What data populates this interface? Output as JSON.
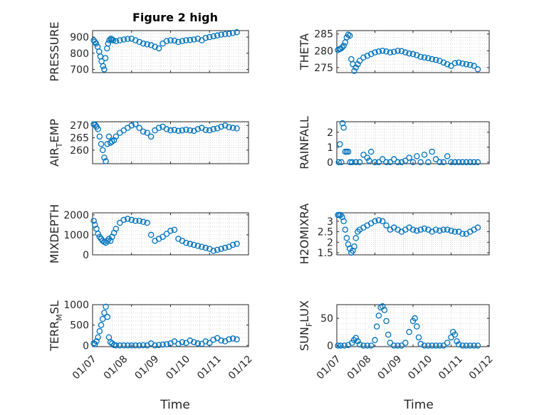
{
  "figure": {
    "title": "Figure 2 high",
    "xlabel": "Time"
  },
  "colors": {
    "marker": "#0072BD",
    "axis": "#262626",
    "grid": "#cfcfcf"
  },
  "chart_data": [
    {
      "type": "scatter",
      "ylabel": "PRESSURE",
      "ylabel_sub": "",
      "ylabel_tail": "",
      "ylim": [
        680,
        940
      ],
      "yticks": [
        700,
        800,
        900
      ],
      "xlim": [
        0,
        4
      ],
      "xticks": [
        "01/07",
        "01/08",
        "01/09",
        "01/10",
        "01/11",
        "01/12"
      ],
      "grid": true,
      "x": [
        0.03,
        0.06,
        0.09,
        0.13,
        0.17,
        0.2,
        0.23,
        0.27,
        0.3,
        0.33,
        0.37,
        0.4,
        0.43,
        0.47,
        0.5,
        0.53,
        0.6,
        0.7,
        0.8,
        0.9,
        1.0,
        1.1,
        1.2,
        1.3,
        1.4,
        1.5,
        1.6,
        1.7,
        1.8,
        1.9,
        2.0,
        2.1,
        2.2,
        2.3,
        2.4,
        2.5,
        2.6,
        2.7,
        2.8,
        2.9,
        3.0,
        3.1,
        3.2,
        3.3,
        3.4,
        3.5,
        3.6,
        3.7
      ],
      "y": [
        880,
        870,
        860,
        840,
        810,
        780,
        750,
        720,
        700,
        770,
        830,
        860,
        880,
        890,
        885,
        880,
        875,
        880,
        885,
        888,
        890,
        880,
        870,
        860,
        855,
        850,
        840,
        830,
        860,
        875,
        880,
        878,
        870,
        875,
        880,
        882,
        885,
        890,
        880,
        895,
        900,
        905,
        910,
        915,
        918,
        920,
        925,
        930
      ]
    },
    {
      "type": "scatter",
      "ylabel": "THETA",
      "ylabel_sub": "",
      "ylabel_tail": "",
      "ylim": [
        273.5,
        286
      ],
      "yticks": [
        275,
        280,
        285
      ],
      "xlim": [
        0,
        4
      ],
      "xticks": [
        "01/07",
        "01/08",
        "01/09",
        "01/10",
        "01/11",
        "01/12"
      ],
      "grid": true,
      "x": [
        0.03,
        0.07,
        0.1,
        0.14,
        0.18,
        0.22,
        0.26,
        0.3,
        0.34,
        0.38,
        0.42,
        0.46,
        0.5,
        0.55,
        0.6,
        0.7,
        0.8,
        0.9,
        1.0,
        1.1,
        1.2,
        1.3,
        1.4,
        1.5,
        1.6,
        1.7,
        1.8,
        1.9,
        2.0,
        2.1,
        2.2,
        2.3,
        2.4,
        2.5,
        2.6,
        2.7,
        2.8,
        2.9,
        3.0,
        3.1,
        3.2,
        3.3,
        3.4,
        3.5,
        3.6,
        3.7
      ],
      "y": [
        280.2,
        280.5,
        280.6,
        281,
        281.5,
        282.5,
        284,
        284.8,
        284.5,
        277.5,
        276,
        274,
        275,
        276,
        277,
        278,
        278.5,
        279,
        279.5,
        279.8,
        280,
        279.8,
        279.5,
        279.7,
        280,
        279.9,
        279.5,
        279.2,
        279,
        278.7,
        278.2,
        278,
        277.8,
        277.5,
        277.3,
        277,
        276.5,
        276,
        275.5,
        276.3,
        276.5,
        276.2,
        276,
        275.8,
        275.5,
        274.5
      ]
    },
    {
      "type": "scatter",
      "ylabel": "AIR",
      "ylabel_sub": "T",
      "ylabel_tail": "EMP",
      "ylim": [
        254.5,
        271.5
      ],
      "yticks": [
        260,
        265,
        270
      ],
      "xlim": [
        0,
        4
      ],
      "xticks": [
        "01/07",
        "01/08",
        "01/09",
        "01/10",
        "01/11",
        "01/12"
      ],
      "grid": true,
      "x": [
        0.03,
        0.07,
        0.1,
        0.14,
        0.18,
        0.22,
        0.26,
        0.3,
        0.34,
        0.38,
        0.42,
        0.46,
        0.5,
        0.55,
        0.6,
        0.7,
        0.8,
        0.9,
        1.0,
        1.1,
        1.2,
        1.3,
        1.4,
        1.5,
        1.6,
        1.7,
        1.8,
        1.9,
        2.0,
        2.1,
        2.2,
        2.3,
        2.4,
        2.5,
        2.6,
        2.7,
        2.8,
        2.9,
        3.0,
        3.1,
        3.2,
        3.3,
        3.4,
        3.5,
        3.6,
        3.7
      ],
      "y": [
        270.5,
        270.2,
        269.5,
        268.5,
        265.5,
        262.5,
        260,
        257,
        255.5,
        262.5,
        265.5,
        263,
        263.5,
        264,
        265.5,
        267,
        268,
        269,
        270,
        270.5,
        269,
        267.5,
        267,
        265.5,
        268,
        269,
        269.5,
        268.5,
        268,
        268.2,
        267.8,
        268,
        268.3,
        268,
        267.8,
        268.5,
        269,
        268.2,
        268,
        268.5,
        268.8,
        269.5,
        270,
        269.3,
        269,
        268.8
      ]
    },
    {
      "type": "scatter",
      "ylabel": "RAINFALL",
      "ylabel_sub": "",
      "ylabel_tail": "",
      "ylim": [
        -0.1,
        2.7
      ],
      "yticks": [
        0,
        1,
        2
      ],
      "xlim": [
        0,
        4
      ],
      "xticks": [
        "01/07",
        "01/08",
        "01/09",
        "01/10",
        "01/11",
        "01/12"
      ],
      "grid": true,
      "x": [
        0.05,
        0.08,
        0.12,
        0.15,
        0.18,
        0.22,
        0.26,
        0.3,
        0.35,
        0.4,
        0.5,
        0.6,
        0.7,
        0.8,
        0.85,
        0.9,
        1.0,
        1.1,
        1.2,
        1.3,
        1.4,
        1.5,
        1.6,
        1.7,
        1.8,
        1.9,
        2.0,
        2.1,
        2.2,
        2.3,
        2.4,
        2.5,
        2.6,
        2.7,
        2.8,
        2.9,
        3.0,
        3.1,
        3.2,
        3.3,
        3.4,
        3.5,
        3.6,
        3.7
      ],
      "y": [
        0,
        1.2,
        0,
        2.6,
        2.3,
        0.7,
        0.7,
        0.7,
        0,
        0,
        0,
        0,
        0.5,
        0.3,
        0.1,
        0.7,
        0,
        0,
        0.2,
        0,
        0,
        0.2,
        0,
        0,
        0.1,
        0.3,
        0,
        0.4,
        0,
        0.5,
        0,
        0.7,
        0.2,
        0,
        0,
        0.4,
        0,
        0,
        0,
        0,
        0,
        0,
        0,
        0
      ]
    },
    {
      "type": "scatter",
      "ylabel": "MIXDEPTH",
      "ylabel_sub": "",
      "ylabel_tail": "",
      "ylim": [
        0,
        2100
      ],
      "yticks": [
        0,
        1000,
        2000
      ],
      "xlim": [
        0,
        4
      ],
      "xticks": [
        "01/07",
        "01/08",
        "01/09",
        "01/10",
        "01/11",
        "01/12"
      ],
      "grid": true,
      "x": [
        0.03,
        0.06,
        0.1,
        0.14,
        0.18,
        0.22,
        0.26,
        0.3,
        0.34,
        0.38,
        0.42,
        0.46,
        0.5,
        0.55,
        0.6,
        0.7,
        0.8,
        0.9,
        1.0,
        1.1,
        1.2,
        1.3,
        1.4,
        1.5,
        1.6,
        1.7,
        1.8,
        1.9,
        2.0,
        2.1,
        2.2,
        2.3,
        2.4,
        2.5,
        2.6,
        2.7,
        2.8,
        2.9,
        3.0,
        3.1,
        3.2,
        3.3,
        3.4,
        3.5,
        3.6,
        3.7
      ],
      "y": [
        1700,
        1500,
        1300,
        1050,
        900,
        800,
        700,
        650,
        600,
        700,
        800,
        700,
        900,
        1100,
        1300,
        1600,
        1750,
        1800,
        1750,
        1700,
        1700,
        1650,
        1600,
        1000,
        700,
        800,
        900,
        1050,
        1200,
        1250,
        800,
        700,
        600,
        550,
        500,
        450,
        400,
        350,
        300,
        200,
        250,
        300,
        350,
        400,
        500,
        550
      ]
    },
    {
      "type": "scatter",
      "ylabel": "H2OMIXRA",
      "ylabel_sub": "",
      "ylabel_tail": "",
      "ylim": [
        1.4,
        3.4
      ],
      "yticks": [
        1.5,
        2,
        2.5,
        3
      ],
      "xlim": [
        0,
        4
      ],
      "xticks": [
        "01/07",
        "01/08",
        "01/09",
        "01/10",
        "01/11",
        "01/12"
      ],
      "grid": true,
      "x": [
        0.03,
        0.06,
        0.1,
        0.14,
        0.18,
        0.22,
        0.26,
        0.3,
        0.34,
        0.38,
        0.42,
        0.46,
        0.5,
        0.55,
        0.6,
        0.7,
        0.8,
        0.9,
        1.0,
        1.1,
        1.2,
        1.3,
        1.4,
        1.5,
        1.6,
        1.7,
        1.8,
        1.9,
        2.0,
        2.1,
        2.2,
        2.3,
        2.4,
        2.5,
        2.6,
        2.7,
        2.8,
        2.9,
        3.0,
        3.1,
        3.2,
        3.3,
        3.4,
        3.5,
        3.6,
        3.7
      ],
      "y": [
        3.3,
        3.3,
        3.3,
        3.2,
        3,
        2.6,
        2.2,
        1.9,
        1.7,
        1.5,
        1.6,
        1.8,
        2.2,
        2.5,
        2.6,
        2.7,
        2.8,
        2.9,
        3.0,
        3.05,
        3.0,
        2.8,
        2.6,
        2.7,
        2.6,
        2.5,
        2.6,
        2.7,
        2.6,
        2.55,
        2.6,
        2.65,
        2.6,
        2.5,
        2.6,
        2.55,
        2.6,
        2.6,
        2.55,
        2.5,
        2.5,
        2.4,
        2.4,
        2.5,
        2.6,
        2.7
      ]
    },
    {
      "type": "scatter",
      "ylabel": "TERR",
      "ylabel_sub": "M",
      "ylabel_tail": "SL",
      "ylim": [
        -30,
        1000
      ],
      "yticks": [
        0,
        500,
        1000
      ],
      "xlim": [
        0,
        4
      ],
      "xticks": [
        "01/07",
        "01/08",
        "01/09",
        "01/10",
        "01/11",
        "01/12"
      ],
      "grid": true,
      "x": [
        0.03,
        0.06,
        0.1,
        0.14,
        0.18,
        0.22,
        0.26,
        0.3,
        0.34,
        0.38,
        0.42,
        0.46,
        0.5,
        0.55,
        0.6,
        0.7,
        0.8,
        0.9,
        1.0,
        1.1,
        1.2,
        1.3,
        1.4,
        1.5,
        1.6,
        1.7,
        1.8,
        1.9,
        2.0,
        2.1,
        2.2,
        2.3,
        2.4,
        2.5,
        2.6,
        2.7,
        2.8,
        2.9,
        3.0,
        3.1,
        3.2,
        3.3,
        3.4,
        3.5,
        3.6,
        3.7
      ],
      "y": [
        50,
        30,
        100,
        200,
        350,
        500,
        650,
        800,
        950,
        700,
        200,
        80,
        50,
        10,
        0,
        0,
        0,
        0,
        0,
        0,
        0,
        5,
        0,
        50,
        0,
        10,
        20,
        30,
        50,
        100,
        40,
        80,
        60,
        120,
        80,
        50,
        40,
        100,
        60,
        140,
        180,
        120,
        100,
        150,
        170,
        150
      ]
    },
    {
      "type": "scatter",
      "ylabel": "SUN",
      "ylabel_sub": "F",
      "ylabel_tail": "LUX",
      "ylim": [
        -2,
        75
      ],
      "yticks": [
        0,
        50
      ],
      "xlim": [
        0,
        4
      ],
      "xticks": [
        "01/07",
        "01/08",
        "01/09",
        "01/10",
        "01/11",
        "01/12"
      ],
      "grid": true,
      "x": [
        0.03,
        0.1,
        0.2,
        0.3,
        0.4,
        0.45,
        0.5,
        0.55,
        0.6,
        0.7,
        0.8,
        0.9,
        1.0,
        1.05,
        1.1,
        1.15,
        1.2,
        1.25,
        1.3,
        1.35,
        1.4,
        1.5,
        1.6,
        1.7,
        1.8,
        1.9,
        2.0,
        2.05,
        2.1,
        2.15,
        2.2,
        2.3,
        2.4,
        2.5,
        2.6,
        2.7,
        2.8,
        2.9,
        3.0,
        3.05,
        3.1,
        3.15,
        3.2,
        3.3,
        3.4,
        3.5,
        3.6,
        3.7
      ],
      "y": [
        0,
        0,
        0,
        1,
        5,
        10,
        14,
        8,
        2,
        0,
        0,
        0,
        10,
        35,
        55,
        70,
        72,
        65,
        45,
        20,
        5,
        0,
        0,
        0,
        5,
        25,
        45,
        50,
        35,
        15,
        3,
        0,
        0,
        0,
        0,
        0,
        0,
        5,
        15,
        25,
        20,
        8,
        2,
        0,
        0,
        0,
        0,
        0
      ]
    }
  ]
}
